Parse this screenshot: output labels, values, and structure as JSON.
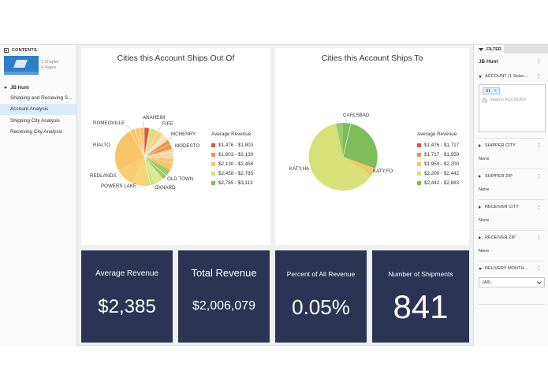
{
  "contents": {
    "header": "CONTENTS",
    "thumb_meta_1": "1 Chapter",
    "thumb_meta_2": "4 Pages",
    "root": "JB Hunt",
    "items": [
      {
        "label": "Shipping and Recieving S..."
      },
      {
        "label": "Account Analysis"
      },
      {
        "label": "Shipping City Analysis"
      },
      {
        "label": "Recieving City Analysis"
      }
    ]
  },
  "charts": {
    "out_of": {
      "title": "Cities this Account Ships Out Of",
      "legend_title": "Average Revenue",
      "legend": [
        {
          "label": "$1,476 - $1,803",
          "color": "#e0523c"
        },
        {
          "label": "$1,803 - $2,130",
          "color": "#ee9348"
        },
        {
          "label": "$2,130 - $2,458",
          "color": "#f7c567"
        },
        {
          "label": "$2,458 - $2,785",
          "color": "#d6e17a"
        },
        {
          "label": "$2,785 - $3,113",
          "color": "#7fbc5a"
        }
      ],
      "labels": [
        "ANAHEIM",
        "FIFE",
        "ROMEOVILLE",
        "MCHENRY",
        "RIALTO",
        "MODESTO",
        "REDLANDS",
        "OLD TOWN",
        "POWERS LAKE",
        "OXNARD"
      ]
    },
    "to": {
      "title": "Cities this Account Ships To",
      "legend_title": "Average Revenue",
      "legend": [
        {
          "label": "$1,476 - $1,717",
          "color": "#e0523c"
        },
        {
          "label": "$1,717 - $1,959",
          "color": "#ee9348"
        },
        {
          "label": "$1,959 - $2,200",
          "color": "#f7c567"
        },
        {
          "label": "$2,200 - $2,442",
          "color": "#d6e17a"
        },
        {
          "label": "$2,442 - $2,683",
          "color": "#7fbc5a"
        }
      ],
      "labels": [
        "CARLSBAD",
        "KATY,HA",
        "KATY,FO"
      ]
    }
  },
  "kpis": [
    {
      "title": "Average Revenue",
      "value": "$2,385"
    },
    {
      "title": "Total Revenue",
      "value": "$2,006,079"
    },
    {
      "title": "Percent of All Revenue",
      "value": "0.05%"
    },
    {
      "title": "Number of Shipments",
      "value": "841"
    }
  ],
  "filter": {
    "header": "FILTER",
    "group": "JB Hunt",
    "account": {
      "label": "ACCOUNT (1 Selec...",
      "chip": "31",
      "chip_remove": "×",
      "search_placeholder": "Search ACCOUNT"
    },
    "sections": [
      {
        "label": "SHIPPER CITY",
        "value": "None"
      },
      {
        "label": "SHIPPER ZIP",
        "value": "None"
      },
      {
        "label": "RECEIVER CITY",
        "value": "None"
      },
      {
        "label": "RECEIVER ZIP",
        "value": "None"
      }
    ],
    "delivery": {
      "label": "DELIVERY MONTH...",
      "value": "(All)"
    }
  }
}
